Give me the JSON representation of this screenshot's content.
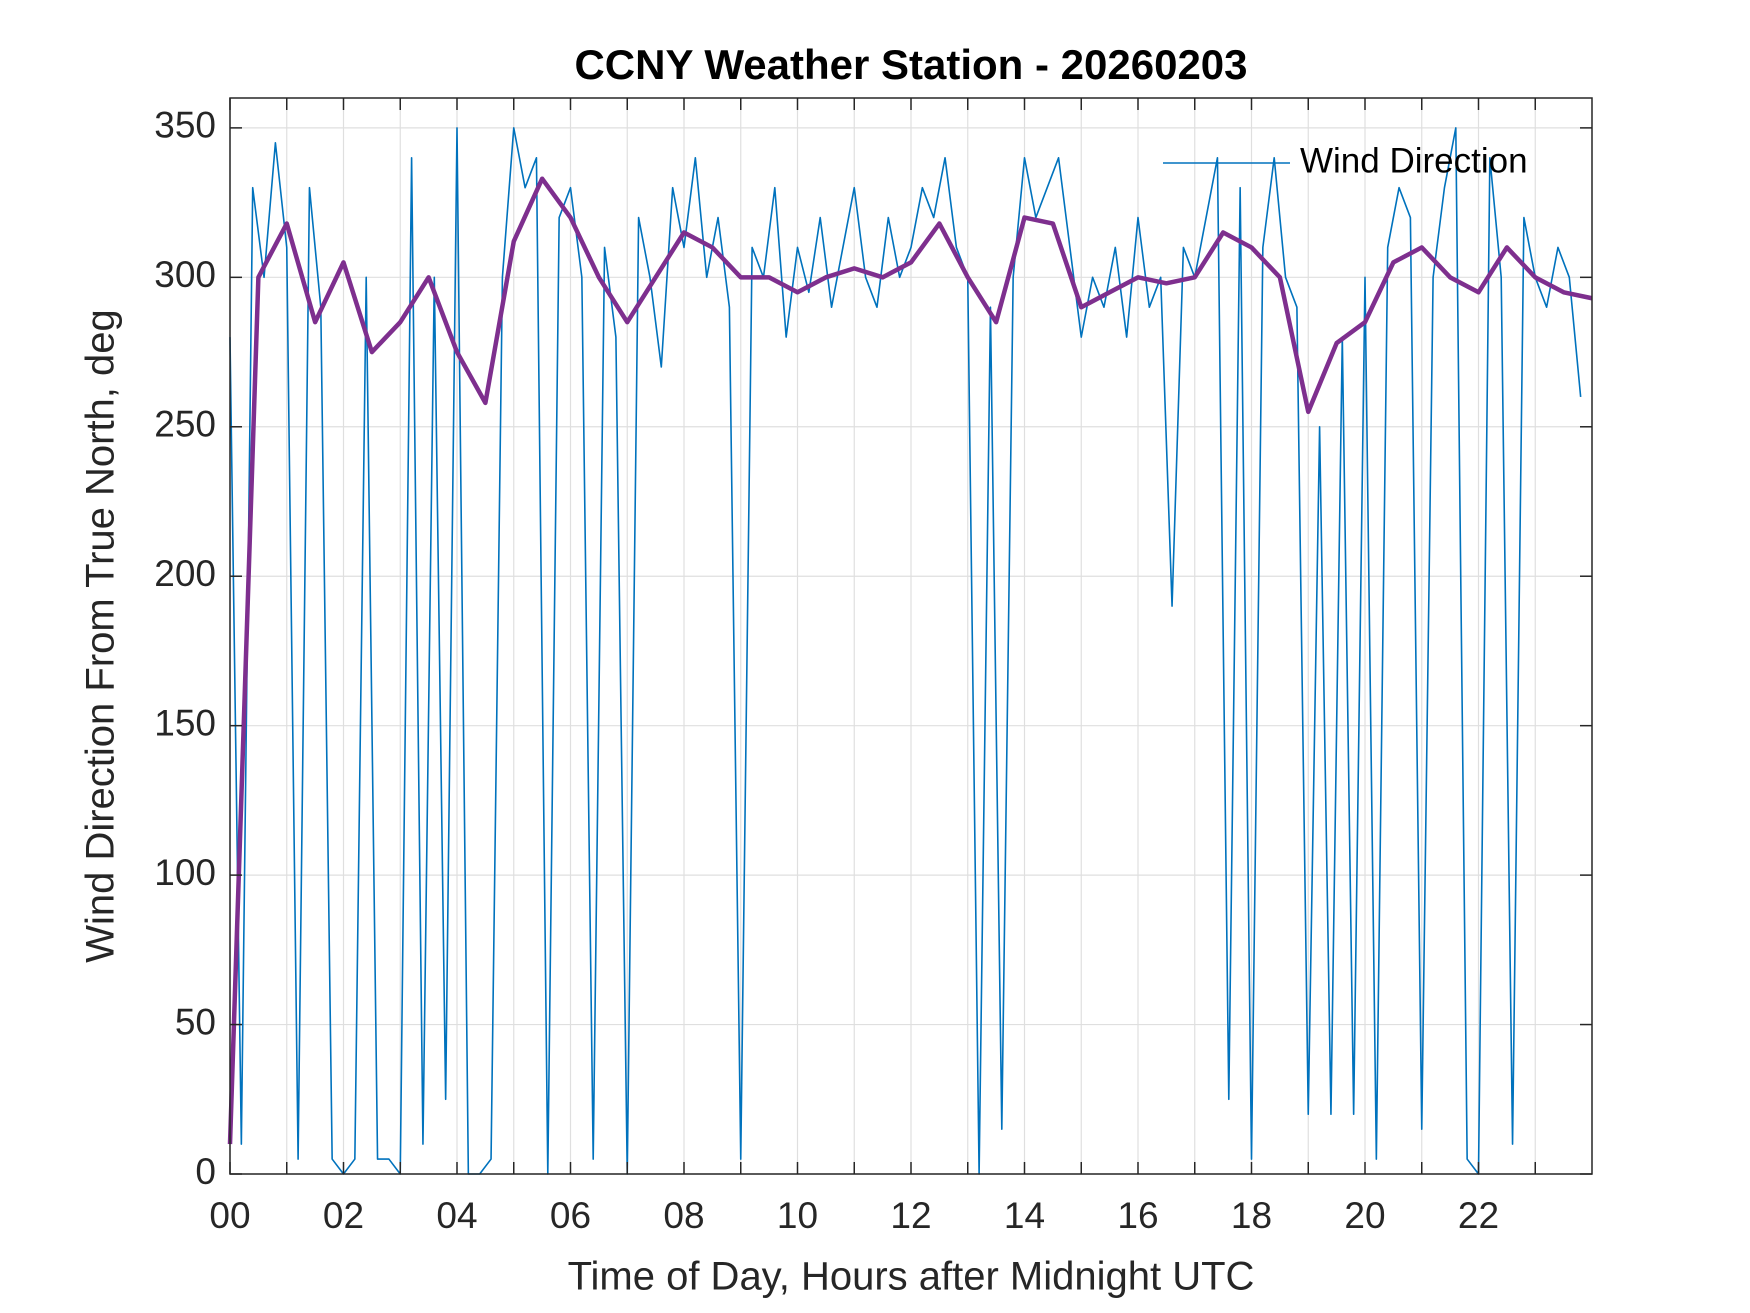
{
  "chart_data": {
    "type": "line",
    "title": "CCNY Weather Station - 20260203",
    "x_label": "Time of Day, Hours after Midnight UTC",
    "y_label": "Wind Direction From True North, deg",
    "series": [
      {
        "name": "Wind Direction",
        "color": "#0072bd",
        "x": [
          0,
          0.2,
          0.4,
          0.6,
          0.8,
          1,
          1.2,
          1.4,
          1.6,
          1.8,
          2,
          2.2,
          2.4,
          2.6,
          2.8,
          3,
          3.2,
          3.4,
          3.6,
          3.8,
          4,
          4.2,
          4.4,
          4.6,
          4.8,
          5,
          5.2,
          5.4,
          5.6,
          5.8,
          6,
          6.2,
          6.4,
          6.6,
          6.8,
          7,
          7.2,
          7.4,
          7.6,
          7.8,
          8,
          8.2,
          8.4,
          8.6,
          8.8,
          9,
          9.2,
          9.4,
          9.6,
          9.8,
          10,
          10.2,
          10.4,
          10.6,
          10.8,
          11,
          11.2,
          11.4,
          11.6,
          11.8,
          12,
          12.2,
          12.4,
          12.6,
          12.8,
          13,
          13.2,
          13.4,
          13.6,
          13.8,
          14,
          14.2,
          14.4,
          14.6,
          14.8,
          15,
          15.2,
          15.4,
          15.6,
          15.8,
          16,
          16.2,
          16.4,
          16.6,
          16.8,
          17,
          17.2,
          17.4,
          17.6,
          17.8,
          18,
          18.2,
          18.4,
          18.6,
          18.8,
          19,
          19.2,
          19.4,
          19.6,
          19.8,
          20,
          20.2,
          20.4,
          20.6,
          20.8,
          21,
          21.2,
          21.4,
          21.6,
          21.8,
          22,
          22.2,
          22.4,
          22.6,
          22.8,
          23,
          23.2,
          23.4,
          23.6,
          23.8
        ],
        "values": [
          280,
          10,
          330,
          300,
          345,
          310,
          5,
          330,
          290,
          5,
          0,
          5,
          300,
          5,
          5,
          0,
          340,
          10,
          300,
          25,
          350,
          0,
          0,
          5,
          300,
          350,
          330,
          340,
          0,
          320,
          330,
          300,
          5,
          310,
          280,
          0,
          320,
          300,
          270,
          330,
          310,
          340,
          300,
          320,
          290,
          5,
          310,
          300,
          330,
          280,
          310,
          295,
          320,
          290,
          310,
          330,
          300,
          290,
          320,
          300,
          310,
          330,
          320,
          340,
          310,
          300,
          0,
          290,
          15,
          300,
          340,
          320,
          330,
          340,
          310,
          280,
          300,
          290,
          310,
          280,
          320,
          290,
          300,
          190,
          310,
          300,
          320,
          340,
          25,
          330,
          5,
          310,
          340,
          300,
          290,
          20,
          250,
          20,
          280,
          20,
          300,
          5,
          310,
          330,
          320,
          15,
          300,
          330,
          350,
          5,
          0,
          340,
          300,
          10,
          320,
          300,
          290,
          310,
          300,
          260
        ]
      },
      {
        "color": "#7e2f8e",
        "x": [
          0,
          0.5,
          1,
          1.5,
          2,
          2.5,
          3,
          3.5,
          4,
          4.5,
          5,
          5.5,
          6,
          6.5,
          7,
          7.5,
          8,
          8.5,
          9,
          9.5,
          10,
          10.5,
          11,
          11.5,
          12,
          12.5,
          13,
          13.5,
          14,
          14.5,
          15,
          15.5,
          16,
          16.5,
          17,
          17.5,
          18,
          18.5,
          19,
          19.5,
          20,
          20.5,
          21,
          21.5,
          22,
          22.5,
          23,
          23.5,
          24
        ],
        "values": [
          10,
          300,
          318,
          285,
          305,
          275,
          285,
          300,
          275,
          258,
          312,
          333,
          320,
          300,
          285,
          300,
          315,
          310,
          300,
          300,
          295,
          300,
          303,
          300,
          305,
          318,
          300,
          285,
          320,
          318,
          290,
          295,
          300,
          298,
          300,
          315,
          310,
          300,
          255,
          278,
          285,
          305,
          310,
          300,
          295,
          310,
          300,
          295,
          293
        ]
      }
    ],
    "xlim": [
      0,
      24
    ],
    "xticks": [
      {
        "value": 0,
        "label": "00"
      },
      {
        "value": 2,
        "label": "02"
      },
      {
        "value": 4,
        "label": "04"
      },
      {
        "value": 6,
        "label": "06"
      },
      {
        "value": 8,
        "label": "08"
      },
      {
        "value": 10,
        "label": "10"
      },
      {
        "value": 12,
        "label": "12"
      },
      {
        "value": 14,
        "label": "14"
      },
      {
        "value": 16,
        "label": "16"
      },
      {
        "value": 18,
        "label": "18"
      },
      {
        "value": 20,
        "label": "20"
      },
      {
        "value": 22,
        "label": "22"
      }
    ],
    "xminorticks": [
      1,
      3,
      5,
      7,
      9,
      11,
      13,
      15,
      17,
      19,
      21,
      23
    ],
    "ylim": [
      0,
      360
    ],
    "yticks": [
      0,
      50,
      100,
      150,
      200,
      250,
      300,
      350
    ],
    "grid": true,
    "legend": "northeast"
  }
}
